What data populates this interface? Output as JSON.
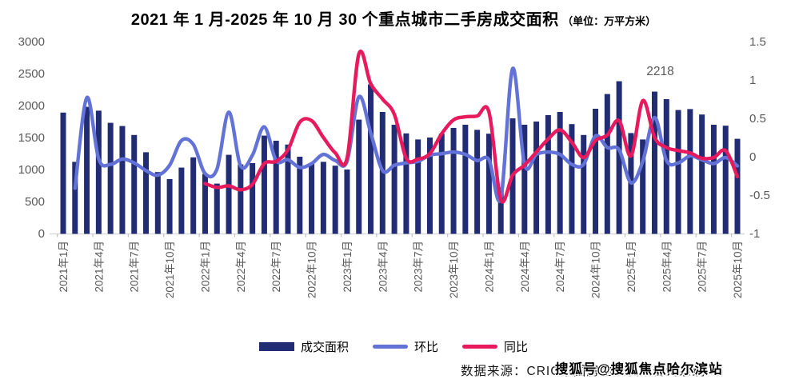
{
  "title": {
    "main": "2021 年 1 月-2025 年 10 月 30 个重点城市二手房成交面积",
    "unit": "（单位：万平方米）"
  },
  "chart_data": {
    "type": "bar",
    "subtype": "bar-line combo, monthly",
    "categories": [
      "2021年1月",
      "2021年2月",
      "2021年3月",
      "2021年4月",
      "2021年5月",
      "2021年6月",
      "2021年7月",
      "2021年8月",
      "2021年9月",
      "2021年10月",
      "2021年11月",
      "2021年12月",
      "2022年1月",
      "2022年2月",
      "2022年3月",
      "2022年4月",
      "2022年5月",
      "2022年6月",
      "2022年7月",
      "2022年8月",
      "2022年9月",
      "2022年10月",
      "2022年11月",
      "2022年12月",
      "2023年1月",
      "2023年2月",
      "2023年3月",
      "2023年4月",
      "2023年5月",
      "2023年6月",
      "2023年7月",
      "2023年8月",
      "2023年9月",
      "2023年10月",
      "2023年11月",
      "2023年12月",
      "2024年1月",
      "2024年2月",
      "2024年3月",
      "2024年4月",
      "2024年5月",
      "2024年6月",
      "2024年7月",
      "2024年8月",
      "2024年9月",
      "2024年10月",
      "2024年11月",
      "2024年12月",
      "2025年1月",
      "2025年2月",
      "2025年3月",
      "2025年4月",
      "2025年5月",
      "2025年6月",
      "2025年7月",
      "2025年8月",
      "2025年9月",
      "2025年10月"
    ],
    "x_tick_every": 3,
    "series": [
      {
        "name": "成交面积",
        "type": "bar",
        "axis": "left",
        "color": "#212C74",
        "values": [
          1890,
          1120,
          1980,
          1920,
          1730,
          1680,
          1540,
          1270,
          960,
          850,
          1030,
          1190,
          930,
          780,
          1230,
          1080,
          1100,
          1530,
          1450,
          1390,
          1200,
          1090,
          1120,
          1060,
          1000,
          1780,
          2330,
          1900,
          1700,
          1565,
          1470,
          1500,
          1560,
          1650,
          1700,
          1620,
          1560,
          720,
          1800,
          1700,
          1750,
          1850,
          1900,
          1710,
          1540,
          1950,
          2180,
          2380,
          1570,
          1470,
          2218,
          2100,
          1930,
          1945,
          1860,
          1700,
          1685,
          1480
        ]
      },
      {
        "name": "环比",
        "type": "line",
        "axis": "right",
        "color": "#6372D6",
        "values": [
          null,
          -0.41,
          0.77,
          -0.03,
          -0.1,
          -0.03,
          -0.08,
          -0.18,
          -0.24,
          -0.11,
          0.21,
          0.16,
          -0.22,
          -0.16,
          0.58,
          -0.12,
          0.02,
          0.39,
          -0.05,
          -0.04,
          -0.14,
          -0.09,
          0.03,
          -0.05,
          -0.06,
          0.78,
          0.31,
          -0.18,
          -0.11,
          -0.08,
          -0.06,
          0.02,
          0.04,
          0.06,
          0.03,
          -0.05,
          -0.04,
          -0.54,
          1.15,
          -0.1,
          0.03,
          0.06,
          0.03,
          -0.1,
          -0.1,
          0.27,
          0.12,
          0.09,
          -0.34,
          -0.06,
          0.51,
          -0.05,
          -0.08,
          0.01,
          -0.04,
          -0.09,
          -0.01,
          -0.12
        ]
      },
      {
        "name": "同比",
        "type": "line",
        "axis": "right",
        "color": "#E61A5C",
        "values": [
          null,
          null,
          null,
          null,
          null,
          null,
          null,
          null,
          null,
          null,
          null,
          null,
          -0.35,
          -0.4,
          -0.38,
          -0.43,
          -0.36,
          -0.09,
          -0.06,
          0.09,
          0.45,
          0.47,
          0.25,
          0.05,
          -0.02,
          1.34,
          0.95,
          0.75,
          0.55,
          -0.02,
          -0.03,
          0.04,
          0.3,
          0.48,
          0.52,
          0.53,
          0.58,
          -0.56,
          -0.24,
          -0.11,
          0.06,
          0.23,
          0.35,
          0.19,
          -0.01,
          0.21,
          0.28,
          0.47,
          0.01,
          0.73,
          0.25,
          0.12,
          0.08,
          0.05,
          -0.02,
          -0.01,
          0.08,
          -0.26
        ]
      }
    ],
    "left_axis": {
      "min": 0,
      "max": 3000,
      "ticks": [
        3000,
        2500,
        2000,
        1500,
        1000,
        500,
        0
      ],
      "tick_labels": [
        "3000",
        "2500",
        "2000",
        "1500",
        "1000",
        "500",
        "0"
      ]
    },
    "right_axis": {
      "min": -1,
      "max": 1.5,
      "ticks": [
        1.5,
        1,
        0.5,
        0,
        -0.5,
        -1
      ],
      "tick_labels": [
        "1.5",
        "1",
        "0.5",
        "0",
        "-0.5",
        "-1"
      ]
    },
    "annotation": {
      "text": "2218",
      "month_index": 50
    },
    "grid": false,
    "legend_position": "bottom",
    "axis_label_color": "#595959",
    "baseline_color": "#D9D9D9"
  },
  "legend": {
    "items": [
      {
        "label": "成交面积",
        "swatch": "bar-swatch",
        "color": "#212C74"
      },
      {
        "label": "环比",
        "swatch": "line-swatch",
        "color": "#6372D6"
      },
      {
        "label": "同比",
        "swatch": "line-swatch",
        "color": "#E61A5C"
      }
    ]
  },
  "footer": {
    "source": "数据来源：CRIC中国房地产决策咨询系统",
    "watermark": "搜狐号@搜狐焦点哈尔滨站"
  }
}
